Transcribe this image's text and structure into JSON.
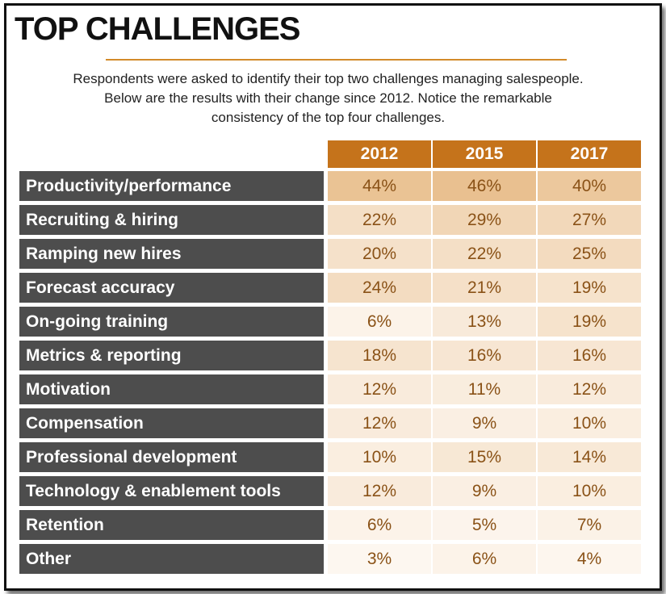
{
  "header": {
    "title": "TOP CHALLENGES",
    "subtitle_lines": [
      "Respondents were asked to identify their top two challenges managing salespeople.",
      "Below are the results with their change since 2012. Notice the remarkable",
      "consistency of the top four challenges."
    ]
  },
  "colors": {
    "header_fill": "#c5731b",
    "label_fill": "#4d4d4d",
    "accent_rule": "#d38b2a",
    "value_text": "#8a5217"
  },
  "chart_data": {
    "type": "table",
    "title": "TOP CHALLENGES",
    "columns": [
      "2012",
      "2015",
      "2017"
    ],
    "rows": [
      {
        "label": "Productivity/performance",
        "values": [
          "44%",
          "46%",
          "40%"
        ]
      },
      {
        "label": "Recruiting & hiring",
        "values": [
          "22%",
          "29%",
          "27%"
        ]
      },
      {
        "label": "Ramping new hires",
        "values": [
          "20%",
          "22%",
          "25%"
        ]
      },
      {
        "label": "Forecast accuracy",
        "values": [
          "24%",
          "21%",
          "19%"
        ]
      },
      {
        "label": "On-going training",
        "values": [
          "6%",
          "13%",
          "19%"
        ]
      },
      {
        "label": "Metrics & reporting",
        "values": [
          "18%",
          "16%",
          "16%"
        ]
      },
      {
        "label": "Motivation",
        "values": [
          "12%",
          "11%",
          "12%"
        ]
      },
      {
        "label": "Compensation",
        "values": [
          "12%",
          "9%",
          "10%"
        ]
      },
      {
        "label": "Professional development",
        "values": [
          "10%",
          "15%",
          "14%"
        ]
      },
      {
        "label": "Technology & enablement tools",
        "values": [
          "12%",
          "9%",
          "10%"
        ]
      },
      {
        "label": "Retention",
        "values": [
          "6%",
          "5%",
          "7%"
        ]
      },
      {
        "label": "Other",
        "values": [
          "3%",
          "6%",
          "4%"
        ]
      }
    ]
  }
}
